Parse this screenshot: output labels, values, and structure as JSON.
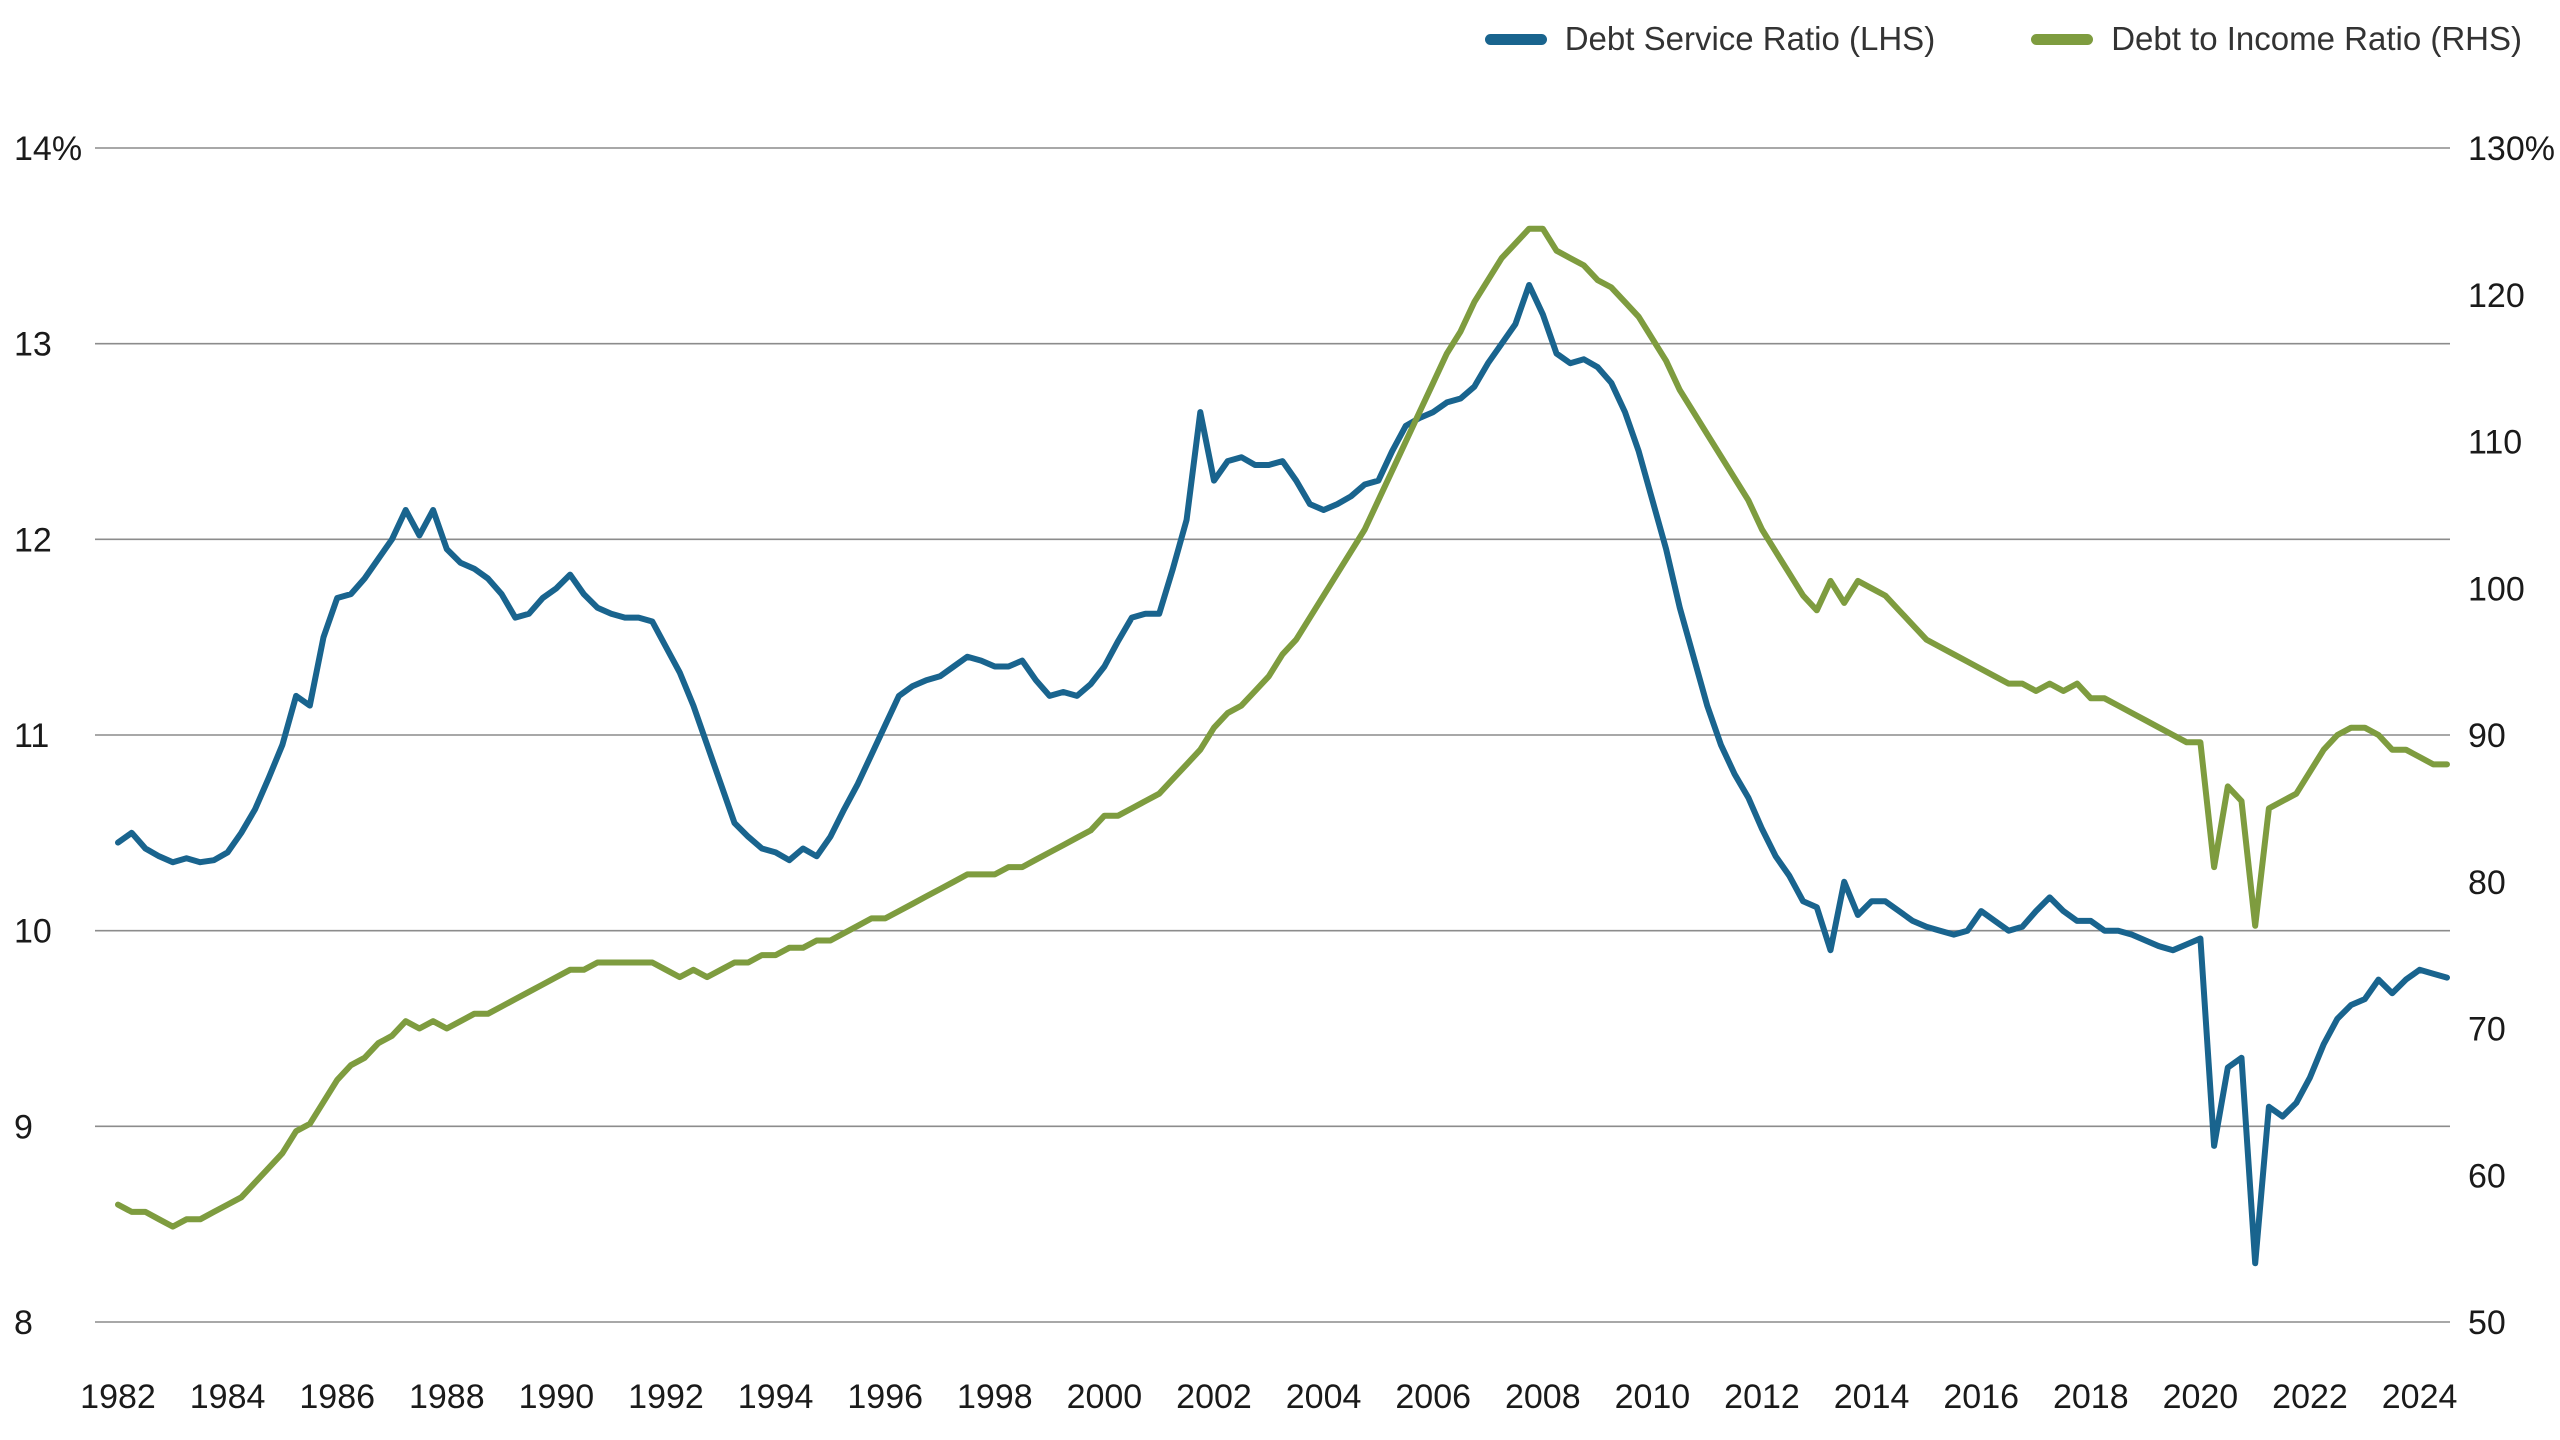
{
  "colors": {
    "background": "#FFFFFF",
    "grid": "#8C8C8C",
    "axis_text": "#1A1A1A",
    "legend_text": "#333333",
    "debt_service_blue": "#19648E",
    "debt_to_income_green": "#7E9C3F"
  },
  "legend": {
    "items": [
      {
        "label": "Debt Service Ratio (LHS)",
        "swatch_color": "#19648E"
      },
      {
        "label": "Debt to Income Ratio (RHS)",
        "swatch_color": "#7E9C3F"
      }
    ]
  },
  "chart_data": {
    "type": "line",
    "title": "",
    "grid": "horizontal",
    "legend_position": "top-right",
    "x_axis": {
      "range": [
        1982,
        2024.5
      ],
      "ticks": [
        1982,
        1984,
        1986,
        1988,
        1990,
        1992,
        1994,
        1996,
        1998,
        2000,
        2002,
        2004,
        2006,
        2008,
        2010,
        2012,
        2014,
        2016,
        2018,
        2020,
        2022,
        2024
      ],
      "tick_labels": [
        "1982",
        "1984",
        "1986",
        "1988",
        "1990",
        "1992",
        "1994",
        "1996",
        "1998",
        "2000",
        "2002",
        "2004",
        "2006",
        "2008",
        "2010",
        "2012",
        "2014",
        "2016",
        "2018",
        "2020",
        "2022",
        "2024"
      ]
    },
    "left_axis": {
      "range": [
        8,
        14
      ],
      "ticks": [
        8,
        9,
        10,
        11,
        12,
        13,
        14
      ],
      "tick_labels": [
        "8",
        "9",
        "10",
        "11",
        "12",
        "13",
        "14%"
      ]
    },
    "right_axis": {
      "range": [
        50,
        130
      ],
      "ticks": [
        50,
        60,
        70,
        80,
        90,
        100,
        110,
        120,
        130
      ],
      "tick_labels": [
        "50",
        "60",
        "70",
        "80",
        "90",
        "100",
        "110",
        "120",
        "130%"
      ]
    },
    "x": [
      1982,
      1982.25,
      1982.5,
      1982.75,
      1983,
      1983.25,
      1983.5,
      1983.75,
      1984,
      1984.25,
      1984.5,
      1984.75,
      1985,
      1985.25,
      1985.5,
      1985.75,
      1986,
      1986.25,
      1986.5,
      1986.75,
      1987,
      1987.25,
      1987.5,
      1987.75,
      1988,
      1988.25,
      1988.5,
      1988.75,
      1989,
      1989.25,
      1989.5,
      1989.75,
      1990,
      1990.25,
      1990.5,
      1990.75,
      1991,
      1991.25,
      1991.5,
      1991.75,
      1992,
      1992.25,
      1992.5,
      1992.75,
      1993,
      1993.25,
      1993.5,
      1993.75,
      1994,
      1994.25,
      1994.5,
      1994.75,
      1995,
      1995.25,
      1995.5,
      1995.75,
      1996,
      1996.25,
      1996.5,
      1996.75,
      1997,
      1997.25,
      1997.5,
      1997.75,
      1998,
      1998.25,
      1998.5,
      1998.75,
      1999,
      1999.25,
      1999.5,
      1999.75,
      2000,
      2000.25,
      2000.5,
      2000.75,
      2001,
      2001.25,
      2001.5,
      2001.75,
      2002,
      2002.25,
      2002.5,
      2002.75,
      2003,
      2003.25,
      2003.5,
      2003.75,
      2004,
      2004.25,
      2004.5,
      2004.75,
      2005,
      2005.25,
      2005.5,
      2005.75,
      2006,
      2006.25,
      2006.5,
      2006.75,
      2007,
      2007.25,
      2007.5,
      2007.75,
      2008,
      2008.25,
      2008.5,
      2008.75,
      2009,
      2009.25,
      2009.5,
      2009.75,
      2010,
      2010.25,
      2010.5,
      2010.75,
      2011,
      2011.25,
      2011.5,
      2011.75,
      2012,
      2012.25,
      2012.5,
      2012.75,
      2013,
      2013.25,
      2013.5,
      2013.75,
      2014,
      2014.25,
      2014.5,
      2014.75,
      2015,
      2015.25,
      2015.5,
      2015.75,
      2016,
      2016.25,
      2016.5,
      2016.75,
      2017,
      2017.25,
      2017.5,
      2017.75,
      2018,
      2018.25,
      2018.5,
      2018.75,
      2019,
      2019.25,
      2019.5,
      2019.75,
      2020,
      2020.25,
      2020.5,
      2020.75,
      2021,
      2021.25,
      2021.5,
      2021.75,
      2022,
      2022.25,
      2022.5,
      2022.75,
      2023,
      2023.25,
      2023.5,
      2023.75,
      2024,
      2024.25,
      2024.5
    ],
    "series": [
      {
        "name": "Debt Service Ratio (LHS)",
        "axis": "left",
        "color": "#19648E",
        "values": [
          10.45,
          10.5,
          10.42,
          10.38,
          10.35,
          10.37,
          10.35,
          10.36,
          10.4,
          10.5,
          10.62,
          10.78,
          10.95,
          11.2,
          11.15,
          11.5,
          11.7,
          11.72,
          11.8,
          11.9,
          12.0,
          12.15,
          12.02,
          12.15,
          11.95,
          11.88,
          11.85,
          11.8,
          11.72,
          11.6,
          11.62,
          11.7,
          11.75,
          11.82,
          11.72,
          11.65,
          11.62,
          11.6,
          11.6,
          11.58,
          11.45,
          11.32,
          11.15,
          10.95,
          10.75,
          10.55,
          10.48,
          10.42,
          10.4,
          10.36,
          10.42,
          10.38,
          10.48,
          10.62,
          10.75,
          10.9,
          11.05,
          11.2,
          11.25,
          11.28,
          11.3,
          11.35,
          11.4,
          11.38,
          11.35,
          11.35,
          11.38,
          11.28,
          11.2,
          11.22,
          11.2,
          11.26,
          11.35,
          11.48,
          11.6,
          11.62,
          11.62,
          11.85,
          12.1,
          12.65,
          12.3,
          12.4,
          12.42,
          12.38,
          12.38,
          12.4,
          12.3,
          12.18,
          12.15,
          12.18,
          12.22,
          12.28,
          12.3,
          12.45,
          12.58,
          12.62,
          12.65,
          12.7,
          12.72,
          12.78,
          12.9,
          13.0,
          13.1,
          13.3,
          13.15,
          12.95,
          12.9,
          12.92,
          12.88,
          12.8,
          12.65,
          12.45,
          12.2,
          11.95,
          11.65,
          11.4,
          11.15,
          10.95,
          10.8,
          10.68,
          10.52,
          10.38,
          10.28,
          10.15,
          10.12,
          9.9,
          10.25,
          10.08,
          10.15,
          10.15,
          10.1,
          10.05,
          10.02,
          10.0,
          9.98,
          10.0,
          10.1,
          10.05,
          10.0,
          10.02,
          10.1,
          10.17,
          10.1,
          10.05,
          10.05,
          10.0,
          10.0,
          9.98,
          9.95,
          9.92,
          9.9,
          9.93,
          9.96,
          8.9,
          9.3,
          9.35,
          8.3,
          9.1,
          9.05,
          9.12,
          9.25,
          9.42,
          9.55,
          9.62,
          9.65,
          9.75,
          9.68,
          9.75,
          9.8,
          9.78,
          9.76
        ]
      },
      {
        "name": "Debt to Income Ratio (RHS)",
        "axis": "right",
        "color": "#7E9C3F",
        "values": [
          58.0,
          57.5,
          57.5,
          57.0,
          56.5,
          57.0,
          57.0,
          57.5,
          58.0,
          58.5,
          59.5,
          60.5,
          61.5,
          63.0,
          63.5,
          65.0,
          66.5,
          67.5,
          68.0,
          69.0,
          69.5,
          70.5,
          70.0,
          70.5,
          70.0,
          70.5,
          71.0,
          71.0,
          71.5,
          72.0,
          72.5,
          73.0,
          73.5,
          74.0,
          74.0,
          74.5,
          74.5,
          74.5,
          74.5,
          74.5,
          74.0,
          73.5,
          74.0,
          73.5,
          74.0,
          74.5,
          74.5,
          75.0,
          75.0,
          75.5,
          75.5,
          76.0,
          76.0,
          76.5,
          77.0,
          77.5,
          77.5,
          78.0,
          78.5,
          79.0,
          79.5,
          80.0,
          80.5,
          80.5,
          80.5,
          81.0,
          81.0,
          81.5,
          82.0,
          82.5,
          83.0,
          83.5,
          84.5,
          84.5,
          85.0,
          85.5,
          86.0,
          87.0,
          88.0,
          89.0,
          90.5,
          91.5,
          92.0,
          93.0,
          94.0,
          95.5,
          96.5,
          98.0,
          99.5,
          101.0,
          102.5,
          104.0,
          106.0,
          108.0,
          110.0,
          112.0,
          114.0,
          116.0,
          117.5,
          119.5,
          121.0,
          122.5,
          123.5,
          124.5,
          124.5,
          123.0,
          122.5,
          122.0,
          121.0,
          120.5,
          119.5,
          118.5,
          117.0,
          115.5,
          113.5,
          112.0,
          110.5,
          109.0,
          107.5,
          106.0,
          104.0,
          102.5,
          101.0,
          99.5,
          98.5,
          100.5,
          99.0,
          100.5,
          100.0,
          99.5,
          98.5,
          97.5,
          96.5,
          96.0,
          95.5,
          95.0,
          94.5,
          94.0,
          93.5,
          93.5,
          93.0,
          93.5,
          93.0,
          93.5,
          92.5,
          92.5,
          92.0,
          91.5,
          91.0,
          90.5,
          90.0,
          89.5,
          89.5,
          81.0,
          86.5,
          85.5,
          77.0,
          85.0,
          85.5,
          86.0,
          87.5,
          89.0,
          90.0,
          90.5,
          90.5,
          90.0,
          89.0,
          89.0,
          88.5,
          88.0,
          88.0
        ]
      }
    ]
  }
}
